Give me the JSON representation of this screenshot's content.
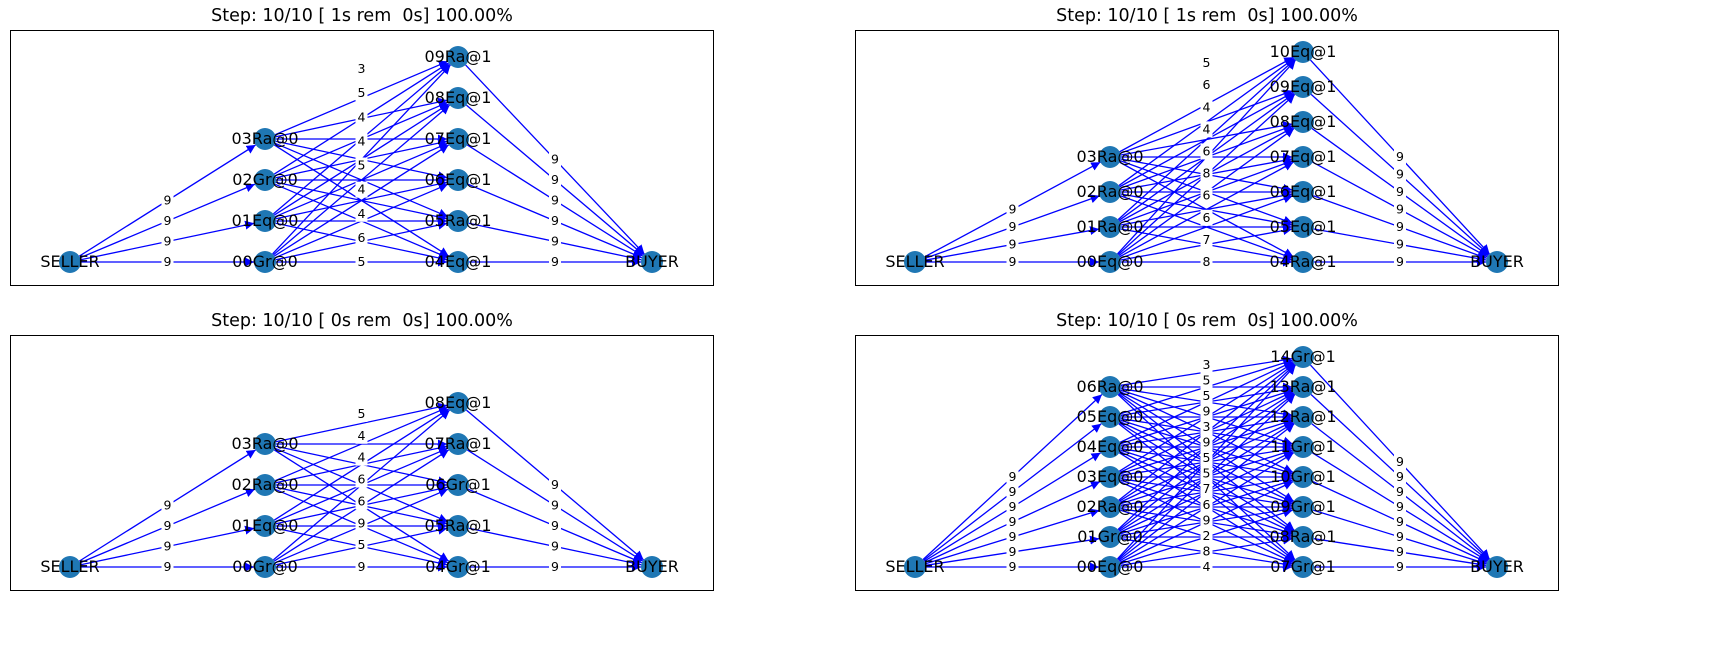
{
  "colors": {
    "node": "#1f77b4",
    "edge": "#0000ff",
    "frame": "#000000",
    "background": "#ffffff"
  },
  "panels": [
    {
      "title": "Step: 10/10 [ 1s rem  0s] 100.00%",
      "layers": [
        [
          "SELLER"
        ],
        [
          "00Gr@0",
          "01Eq@0",
          "02Gr@0",
          "03Ra@0"
        ],
        [
          "04Eq@1",
          "05Ra@1",
          "06Eq@1",
          "07Eq@1",
          "08Eq@1",
          "09Ra@1"
        ],
        [
          "BUYER"
        ]
      ],
      "edge_labels": {
        "source": [
          "9",
          "9",
          "9",
          "9"
        ],
        "middle": [
          "5",
          "6",
          "4",
          "4",
          "5",
          "4",
          "4",
          "5",
          "3"
        ],
        "sink": [
          "9",
          "9",
          "9",
          "9",
          "9",
          "9"
        ]
      }
    },
    {
      "title": "Step: 10/10 [ 1s rem  0s] 100.00%",
      "layers": [
        [
          "SELLER"
        ],
        [
          "00Eq@0",
          "01Ra@0",
          "02Ra@0",
          "03Ra@0"
        ],
        [
          "04Ra@1",
          "05Eq@1",
          "06Eq@1",
          "07Eq@1",
          "08Eq@1",
          "09Eq@1",
          "10Eq@1"
        ],
        [
          "BUYER"
        ]
      ],
      "edge_labels": {
        "source": [
          "9",
          "9",
          "9",
          "9"
        ],
        "middle": [
          "8",
          "7",
          "6",
          "6",
          "8",
          "6",
          "4",
          "4",
          "6",
          "5"
        ],
        "sink": [
          "9",
          "9",
          "9",
          "9",
          "9",
          "9",
          "9"
        ]
      }
    },
    {
      "title": "Step: 10/10 [ 0s rem  0s] 100.00%",
      "layers": [
        [
          "SELLER"
        ],
        [
          "00Gr@0",
          "01Eq@0",
          "02Ra@0",
          "03Ra@0"
        ],
        [
          "04Gr@1",
          "05Ra@1",
          "06Gr@1",
          "07Ra@1",
          "08Eq@1"
        ],
        [
          "BUYER"
        ]
      ],
      "edge_labels": {
        "source": [
          "9",
          "9",
          "9",
          "9"
        ],
        "middle": [
          "9",
          "5",
          "9",
          "6",
          "6",
          "4",
          "4",
          "5"
        ],
        "sink": [
          "9",
          "9",
          "9",
          "9",
          "9"
        ]
      }
    },
    {
      "title": "Step: 10/10 [ 0s rem  0s] 100.00%",
      "layers": [
        [
          "SELLER"
        ],
        [
          "00Eq@0",
          "01Gr@0",
          "02Ra@0",
          "03Eq@0",
          "04Eq@0",
          "05Eq@0",
          "06Ra@0"
        ],
        [
          "07Gr@1",
          "08Ra@1",
          "09Gr@1",
          "10Gr@1",
          "11Gr@1",
          "12Ra@1",
          "13Ra@1",
          "14Gr@1"
        ],
        [
          "BUYER"
        ]
      ],
      "edge_labels": {
        "source": [
          "9",
          "9",
          "9",
          "9",
          "9",
          "9",
          "9"
        ],
        "middle": [
          "4",
          "8",
          "2",
          "9",
          "6",
          "7",
          "5",
          "5",
          "9",
          "3",
          "9",
          "5",
          "5",
          "3"
        ],
        "sink": [
          "9",
          "9",
          "9",
          "9",
          "9",
          "9",
          "9",
          "9"
        ]
      }
    }
  ]
}
